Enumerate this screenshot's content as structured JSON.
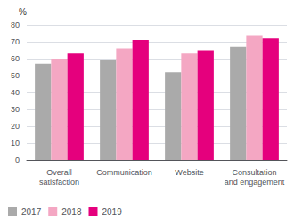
{
  "chart_data": {
    "type": "bar",
    "ylabel": "%",
    "categories": [
      "Overall\nsatisfaction",
      "Communication",
      "Website",
      "Consultation\nand engagement"
    ],
    "series": [
      {
        "name": "2017",
        "color": "#aaaaaa",
        "values": [
          57,
          59,
          52,
          67
        ]
      },
      {
        "name": "2018",
        "color": "#f4a7c3",
        "values": [
          60,
          66,
          63,
          74
        ]
      },
      {
        "name": "2019",
        "color": "#e5007d",
        "values": [
          63,
          71,
          65,
          72
        ]
      }
    ],
    "ylim": [
      0,
      80
    ],
    "yticks": [
      0,
      10,
      20,
      30,
      40,
      50,
      60,
      70,
      80
    ],
    "grid": true,
    "legend": "lower left"
  }
}
